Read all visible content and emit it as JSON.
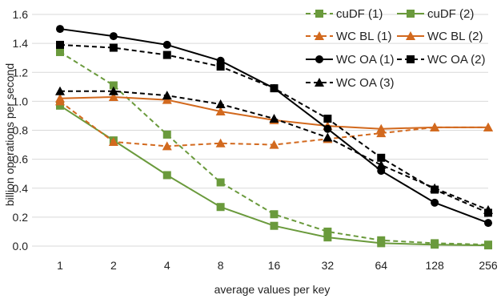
{
  "chart_data": {
    "type": "line",
    "title": "",
    "xlabel": "average values per key",
    "ylabel": "billion operations per second",
    "x": [
      "1",
      "2",
      "4",
      "8",
      "16",
      "32",
      "64",
      "128",
      "256"
    ],
    "ylim": [
      0,
      1.6
    ],
    "yticks": [
      "0.0",
      "0.2",
      "0.4",
      "0.6",
      "0.8",
      "1.0",
      "1.2",
      "1.4",
      "1.6"
    ],
    "grid": "horizontal",
    "legend_position": "top-right",
    "series": [
      {
        "name": "cuDF (1)",
        "color": "#6a9a3c",
        "dash": "dashed",
        "marker": "square",
        "values": [
          1.34,
          1.11,
          0.77,
          0.44,
          0.22,
          0.1,
          0.04,
          0.02,
          0.01
        ]
      },
      {
        "name": "cuDF (2)",
        "color": "#6a9a3c",
        "dash": "solid",
        "marker": "square",
        "values": [
          0.97,
          0.73,
          0.49,
          0.27,
          0.14,
          0.06,
          0.02,
          0.01,
          0.005
        ]
      },
      {
        "name": "WC BL (1)",
        "color": "#d2691e",
        "dash": "dashed",
        "marker": "triangle",
        "values": [
          1.0,
          0.72,
          0.69,
          0.71,
          0.7,
          0.74,
          0.78,
          0.82,
          0.82
        ]
      },
      {
        "name": "WC BL (2)",
        "color": "#d2691e",
        "dash": "solid",
        "marker": "triangle",
        "values": [
          1.02,
          1.03,
          1.01,
          0.93,
          0.87,
          0.83,
          0.81,
          0.82,
          0.82
        ]
      },
      {
        "name": "WC OA (1)",
        "color": "#000000",
        "dash": "solid",
        "marker": "circle",
        "values": [
          1.5,
          1.45,
          1.39,
          1.28,
          1.09,
          0.81,
          0.52,
          0.3,
          0.16
        ]
      },
      {
        "name": "WC OA (2)",
        "color": "#000000",
        "dash": "dashed",
        "marker": "square",
        "values": [
          1.39,
          1.37,
          1.32,
          1.24,
          1.09,
          0.88,
          0.61,
          0.39,
          0.23
        ]
      },
      {
        "name": "WC OA (3)",
        "color": "#000000",
        "dash": "dashed",
        "marker": "triangle",
        "values": [
          1.07,
          1.07,
          1.04,
          0.98,
          0.88,
          0.75,
          0.56,
          0.4,
          0.25
        ]
      }
    ]
  }
}
